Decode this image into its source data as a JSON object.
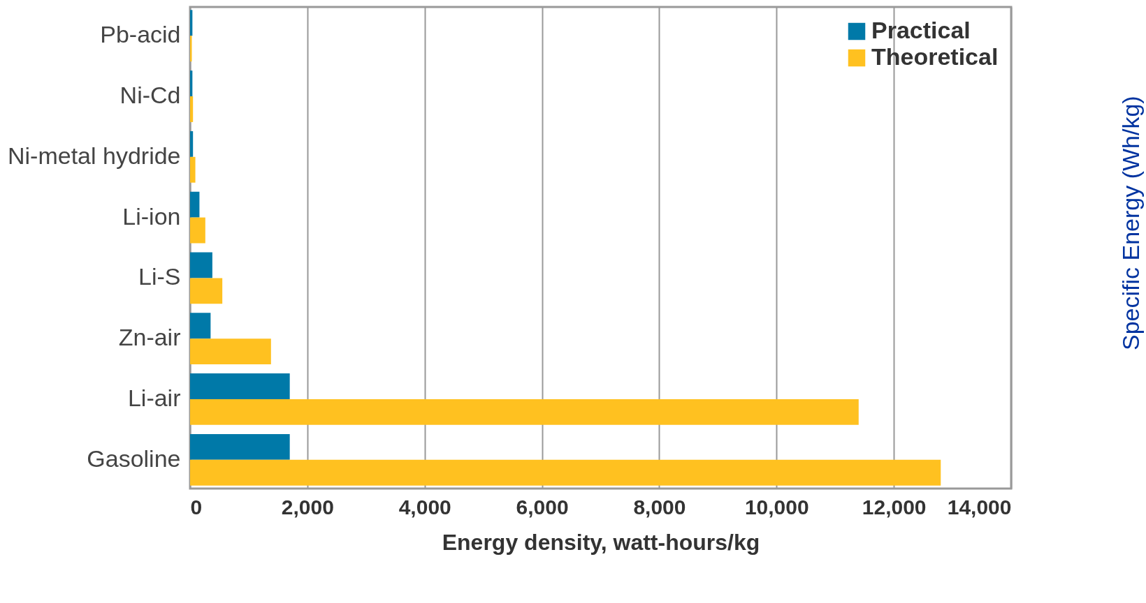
{
  "chart_data": {
    "type": "bar",
    "orientation": "horizontal",
    "xlabel": "Energy density, watt-hours/kg",
    "y2label": "Specific Energy (Wh/kg)",
    "categories": [
      "Pb-acid",
      "Ni-Cd",
      "Ni-metal hydride",
      "Li-ion",
      "Li-S",
      "Zn-air",
      "Li-air",
      "Gasoline"
    ],
    "series": [
      {
        "name": "Practical",
        "color": "#0079a8",
        "values": [
          40,
          40,
          50,
          160,
          380,
          350,
          1700,
          1700
        ]
      },
      {
        "name": "Theoretical",
        "color": "#ffc120",
        "values": [
          30,
          50,
          90,
          260,
          550,
          1380,
          11400,
          12800
        ]
      }
    ],
    "xlim": [
      0,
      14000
    ],
    "xticks": [
      {
        "value": 0,
        "label": "0"
      },
      {
        "value": 2000,
        "label": "2,000"
      },
      {
        "value": 4000,
        "label": "4,000"
      },
      {
        "value": 6000,
        "label": "6,000"
      },
      {
        "value": 8000,
        "label": "8,000"
      },
      {
        "value": 10000,
        "label": "10,000"
      },
      {
        "value": 12000,
        "label": "12,000"
      },
      {
        "value": 14000,
        "label": "14,000"
      }
    ],
    "grid": "x",
    "legend": "top right"
  }
}
